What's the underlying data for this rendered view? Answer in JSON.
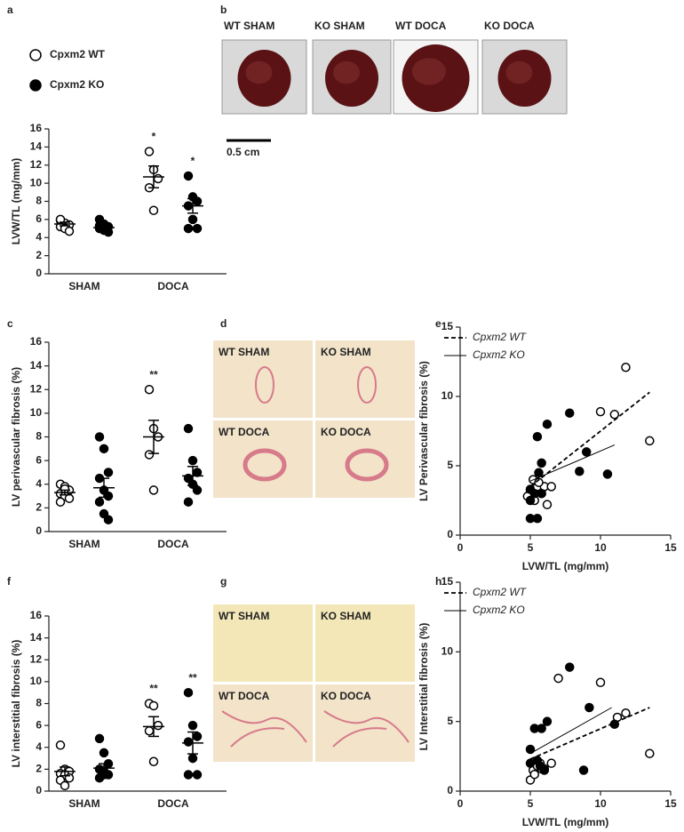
{
  "chart_data": [
    {
      "type": "dot",
      "label": "a",
      "ylabel": "LVW/TL (mg/mm)",
      "categories": [
        "SHAM",
        "DOCA"
      ],
      "ylim": [
        0,
        16
      ],
      "yticks": [
        0,
        2,
        4,
        6,
        8,
        10,
        12,
        14,
        16
      ],
      "series": [
        {
          "name": "Cpxm2 WT",
          "marker": "open",
          "color": "#000000",
          "values": [
            [
              5.9,
              5.6,
              5.4,
              5.2,
              5.0,
              4.7,
              6.0
            ],
            [
              13.5,
              11.5,
              10.5,
              9.5,
              7.0
            ]
          ],
          "mean": [
            5.5,
            10.7
          ],
          "sem": [
            0.2,
            1.2
          ],
          "annotations": [
            null,
            "*"
          ]
        },
        {
          "name": "Cpxm2 KO",
          "marker": "filled",
          "color": "#000000",
          "values": [
            [
              6.0,
              5.5,
              5.2,
              5.0,
              4.8,
              4.6,
              5.3,
              4.9
            ],
            [
              10.8,
              8.5,
              8.0,
              7.5,
              6.0,
              5.0,
              5.0
            ]
          ],
          "mean": [
            5.1,
            7.5
          ],
          "sem": [
            0.2,
            0.8
          ],
          "annotations": [
            null,
            "*"
          ]
        }
      ]
    },
    {
      "type": "dot",
      "label": "c",
      "ylabel": "LV perivascular fibrosis (%)",
      "categories": [
        "SHAM",
        "DOCA"
      ],
      "ylim": [
        0,
        16
      ],
      "yticks": [
        0,
        2,
        4,
        6,
        8,
        10,
        12,
        14,
        16
      ],
      "series": [
        {
          "marker": "open",
          "color": "#000000",
          "values": [
            [
              4.0,
              3.8,
              3.5,
              3.2,
              3.0,
              2.8,
              2.5,
              3.6
            ],
            [
              12.0,
              8.7,
              8.0,
              6.5,
              3.5
            ]
          ],
          "mean": [
            3.3,
            8.0
          ],
          "sem": [
            0.2,
            1.4
          ],
          "annotations": [
            null,
            "**"
          ]
        },
        {
          "marker": "filled",
          "color": "#000000",
          "values": [
            [
              8.0,
              7.0,
              5.0,
              4.5,
              3.5,
              3.0,
              2.5,
              1.5,
              1.0
            ],
            [
              8.7,
              6.0,
              5.0,
              4.5,
              4.0,
              3.5,
              2.5
            ]
          ],
          "mean": [
            3.7,
            4.7
          ],
          "sem": [
            0.8,
            0.8
          ],
          "annotations": [
            null,
            null
          ]
        }
      ]
    },
    {
      "type": "scatter",
      "label": "e",
      "xlabel": "LVW/TL (mg/mm)",
      "ylabel": "LV Perivascular fibrosis (%)",
      "xlim": [
        0,
        15
      ],
      "xticks": [
        0,
        5,
        10,
        15
      ],
      "ylim": [
        0,
        15
      ],
      "yticks": [
        0,
        5,
        10,
        15
      ],
      "series": [
        {
          "name": "Cpxm2 WT",
          "marker": "open",
          "color": "#000000",
          "line_style": "dashed",
          "x": [
            5.5,
            5.2,
            5.8,
            6.0,
            6.5,
            5.3,
            6.2,
            10.0,
            11.0,
            11.8,
            13.5,
            5.0,
            5.6,
            4.8
          ],
          "y": [
            3.5,
            4.0,
            3.0,
            3.5,
            3.5,
            2.5,
            2.2,
            8.9,
            8.7,
            12.1,
            6.8,
            3.2,
            3.8,
            2.8
          ],
          "fit": {
            "x": [
              5.0,
              13.5
            ],
            "y": [
              3.5,
              10.3
            ]
          }
        },
        {
          "name": "Cpxm2 KO",
          "marker": "filled",
          "color": "#000000",
          "line_style": "solid",
          "x": [
            5.0,
            5.5,
            5.0,
            5.3,
            5.6,
            5.5,
            6.2,
            7.8,
            5.8,
            9.0,
            8.5,
            10.5,
            5.0,
            5.8
          ],
          "y": [
            1.2,
            1.2,
            2.5,
            3.0,
            4.5,
            7.1,
            8.0,
            8.8,
            3.0,
            6.0,
            4.6,
            4.4,
            3.3,
            5.2
          ],
          "fit": {
            "x": [
              5.0,
              11.0
            ],
            "y": [
              3.9,
              6.5
            ]
          }
        }
      ]
    },
    {
      "type": "dot",
      "label": "f",
      "ylabel": "LV interstitial fibrosis (%)",
      "categories": [
        "SHAM",
        "DOCA"
      ],
      "ylim": [
        0,
        16
      ],
      "yticks": [
        0,
        2,
        4,
        6,
        8,
        10,
        12,
        14,
        16
      ],
      "series": [
        {
          "marker": "open",
          "color": "#000000",
          "values": [
            [
              4.2,
              2.0,
              1.8,
              1.6,
              1.5,
              1.2,
              1.0,
              0.5
            ],
            [
              8.0,
              7.8,
              6.0,
              5.5,
              2.7
            ]
          ],
          "mean": [
            1.8,
            5.9
          ],
          "sem": [
            0.4,
            0.9
          ],
          "annotations": [
            null,
            "**"
          ]
        },
        {
          "marker": "filled",
          "color": "#000000",
          "values": [
            [
              4.8,
              3.5,
              2.5,
              2.0,
              1.8,
              1.5,
              1.2,
              1.5
            ],
            [
              9.0,
              6.0,
              5.0,
              4.5,
              3.0,
              1.5,
              1.5
            ]
          ],
          "mean": [
            2.1,
            4.4
          ],
          "sem": [
            0.4,
            1.0
          ],
          "annotations": [
            null,
            "**"
          ]
        }
      ]
    },
    {
      "type": "scatter",
      "label": "h",
      "xlabel": "LVW/TL (mg/mm)",
      "ylabel": "LV Interstitial fibrosis (%)",
      "xlim": [
        0,
        15
      ],
      "xticks": [
        0,
        5,
        10,
        15
      ],
      "ylim": [
        0,
        15
      ],
      "yticks": [
        0,
        5,
        10,
        15
      ],
      "series": [
        {
          "name": "Cpxm2 WT",
          "marker": "open",
          "color": "#000000",
          "line_style": "dashed",
          "x": [
            5.0,
            5.2,
            5.5,
            6.0,
            5.7,
            6.5,
            5.3,
            7.0,
            10.0,
            11.2,
            11.8,
            13.5,
            5.8
          ],
          "y": [
            0.8,
            1.5,
            1.8,
            1.6,
            2.0,
            2.0,
            1.2,
            8.1,
            7.8,
            5.3,
            5.6,
            2.7,
            1.6
          ],
          "fit": {
            "x": [
              5.0,
              13.5
            ],
            "y": [
              2.3,
              6.0
            ]
          }
        },
        {
          "name": "Cpxm2 KO",
          "marker": "filled",
          "color": "#000000",
          "line_style": "solid",
          "x": [
            5.0,
            5.3,
            5.8,
            6.2,
            7.8,
            9.2,
            8.8,
            11.0,
            5.0,
            5.5,
            5.7,
            6.0
          ],
          "y": [
            2.0,
            4.5,
            4.5,
            5.0,
            8.9,
            6.0,
            1.5,
            4.8,
            3.0,
            2.2,
            1.8,
            1.5
          ],
          "fit": {
            "x": [
              5.0,
              10.8
            ],
            "y": [
              2.7,
              6.0
            ]
          }
        }
      ]
    }
  ],
  "photos": [
    {
      "label": "b",
      "tiles": [
        "WT SHAM",
        "KO SHAM",
        "WT DOCA",
        "KO DOCA"
      ],
      "scale": "0.5 cm"
    },
    {
      "label": "d",
      "tiles": [
        "WT SHAM",
        "KO SHAM",
        "WT DOCA",
        "KO DOCA"
      ]
    },
    {
      "label": "g",
      "tiles": [
        "WT SHAM",
        "KO SHAM",
        "WT DOCA",
        "KO DOCA"
      ]
    }
  ]
}
